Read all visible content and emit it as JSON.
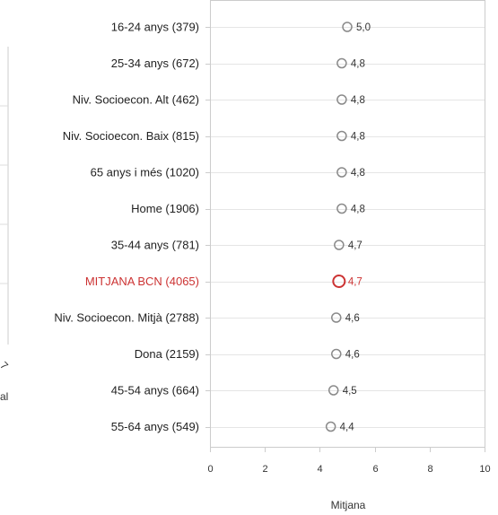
{
  "left_fragment": {
    "text1": "7",
    "text2": "al"
  },
  "chart_data": {
    "type": "scatter",
    "categories": [
      "16-24 anys (379)",
      "25-34 anys (672)",
      "Niv. Socioecon. Alt (462)",
      "Niv. Socioecon. Baix (815)",
      "65 anys i més (1020)",
      "Home (1906)",
      "35-44 anys (781)",
      "MITJANA BCN (4065)",
      "Niv. Socioecon. Mitjà (2788)",
      "Dona (2159)",
      "45-54 anys (664)",
      "55-64 anys (549)"
    ],
    "values": [
      5.0,
      4.8,
      4.8,
      4.8,
      4.8,
      4.8,
      4.7,
      4.7,
      4.6,
      4.6,
      4.5,
      4.4
    ],
    "value_labels": [
      "5,0",
      "4,8",
      "4,8",
      "4,8",
      "4,8",
      "4,8",
      "4,7",
      "4,7",
      "4,6",
      "4,6",
      "4,5",
      "4,4"
    ],
    "highlight_index": 7,
    "xlabel": "Mitjana",
    "xlim": [
      0,
      10
    ],
    "xticks": [
      0,
      2,
      4,
      6,
      8,
      10
    ],
    "grid": true,
    "colors": {
      "marker": "#8a8a8a",
      "highlight": "#cc3333",
      "text": "#222222",
      "grid": "#e5e5e5",
      "axis": "#cccccc"
    }
  }
}
